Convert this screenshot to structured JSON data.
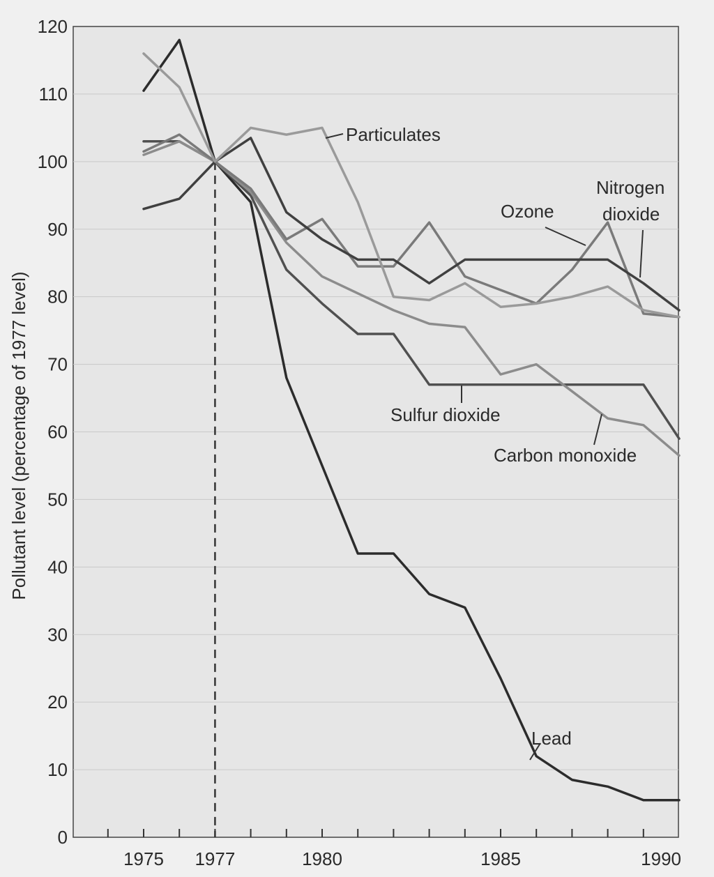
{
  "chart_data": {
    "type": "line",
    "title": "",
    "xlabel": "",
    "ylabel": "Pollutant level (percentage of 1977 level)",
    "xlim": [
      1975,
      1990
    ],
    "ylim": [
      0,
      120
    ],
    "x_ticks": [
      1975,
      1977,
      1980,
      1985,
      1990
    ],
    "y_ticks": [
      0,
      10,
      20,
      30,
      40,
      50,
      60,
      70,
      80,
      90,
      100,
      110,
      120
    ],
    "grid": true,
    "reference_line_x": 1977,
    "x": [
      1975,
      1976,
      1977,
      1978,
      1979,
      1980,
      1981,
      1982,
      1983,
      1984,
      1985,
      1986,
      1987,
      1988,
      1989,
      1990
    ],
    "series": [
      {
        "name": "Lead",
        "color": "#2c2c2c",
        "values": [
          110.5,
          118,
          100,
          94,
          68,
          55,
          42,
          42,
          36,
          34,
          23.5,
          12,
          8.5,
          7.5,
          5.5,
          5.5
        ]
      },
      {
        "name": "Sulfur dioxide",
        "color": "#505050",
        "values": [
          103,
          103,
          100,
          95,
          84,
          79,
          74.5,
          74.5,
          67,
          67,
          67,
          67,
          67,
          67,
          67,
          59
        ]
      },
      {
        "name": "Carbon monoxide",
        "color": "#8c8c8c",
        "values": [
          101,
          103,
          100,
          95.5,
          88,
          83,
          80.5,
          78,
          76,
          75.5,
          68.5,
          70,
          66,
          62,
          61,
          56.5
        ]
      },
      {
        "name": "Ozone",
        "color": "#7a7a7a",
        "values": [
          101.5,
          104,
          100,
          96,
          88.5,
          91.5,
          84.5,
          84.5,
          91,
          83,
          81,
          79,
          84,
          91,
          77.5,
          77
        ]
      },
      {
        "name": "Nitrogen dioxide",
        "color": "#404040",
        "values": [
          93,
          94.5,
          100,
          103.5,
          92.5,
          88.5,
          85.5,
          85.5,
          82,
          85.5,
          85.5,
          85.5,
          85.5,
          85.5,
          82,
          78
        ]
      },
      {
        "name": "Particulates",
        "color": "#9a9a9a",
        "values": [
          116,
          111,
          100,
          105,
          104,
          105,
          94,
          80,
          79.5,
          82,
          78.5,
          79,
          80,
          81.5,
          78,
          77
        ]
      }
    ],
    "annotations": [
      {
        "text": "Particulates"
      },
      {
        "text": "Ozone"
      },
      {
        "text": "Nitrogen"
      },
      {
        "text": "dioxide"
      },
      {
        "text": "Sulfur dioxide"
      },
      {
        "text": "Carbon monoxide"
      },
      {
        "text": "Lead"
      }
    ]
  }
}
